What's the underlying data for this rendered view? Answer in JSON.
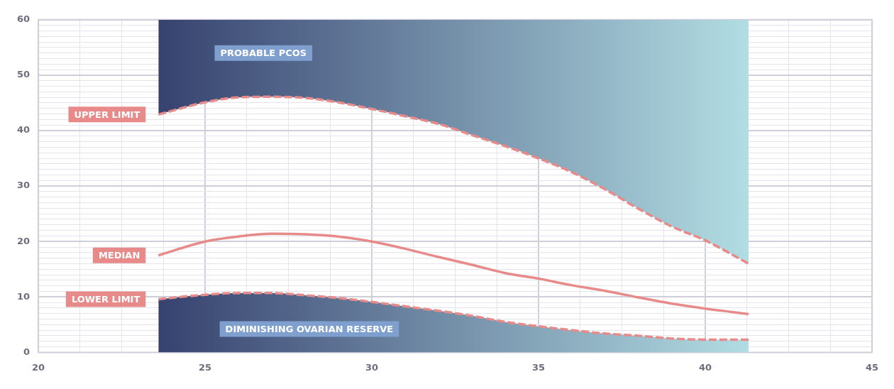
{
  "chart_data": {
    "type": "line",
    "x": [
      23.6,
      25,
      26,
      27,
      28,
      29,
      30,
      31,
      32,
      33,
      34,
      35,
      36,
      37,
      38,
      39,
      40,
      41.3
    ],
    "series": [
      {
        "name": "UPPER LIMIT",
        "color": "#e88a8a",
        "line_style": "dashed",
        "values": [
          42.9,
          45.1,
          46.0,
          46.1,
          45.9,
          45.1,
          43.9,
          42.6,
          41.2,
          39.2,
          37.2,
          35.0,
          32.5,
          29.4,
          25.9,
          22.7,
          20.2,
          16.0
        ],
        "lower": [
          42.9,
          45.1,
          46.0,
          46.1,
          45.9,
          45.1,
          43.9,
          42.6,
          41.2,
          39.2,
          37.2,
          35.0,
          32.5,
          29.4,
          25.9,
          22.7,
          20.2,
          16.0
        ],
        "upper": [
          60,
          60,
          60,
          60,
          60,
          60,
          60,
          60,
          60,
          60,
          60,
          60,
          60,
          60,
          60,
          60,
          60,
          60
        ]
      },
      {
        "name": "MEDIAN",
        "color": "#e88a8a",
        "line_style": "solid",
        "values": [
          17.5,
          20.0,
          20.9,
          21.4,
          21.3,
          20.9,
          20.0,
          18.7,
          17.2,
          15.8,
          14.3,
          13.3,
          12.1,
          11.1,
          9.9,
          8.8,
          7.9,
          6.9
        ]
      },
      {
        "name": "LOWER LIMIT",
        "type": "area",
        "color": "#e88a8a",
        "line_style": "dashed",
        "values": [
          9.6,
          10.4,
          10.7,
          10.7,
          10.3,
          9.8,
          9.1,
          8.3,
          7.5,
          6.6,
          5.5,
          4.7,
          4.0,
          3.4,
          3.0,
          2.5,
          2.3,
          2.3
        ]
      }
    ],
    "annotations": [
      "PROBABLE PCOS",
      "DIMINISHING OVARIAN RESERVE"
    ],
    "xlim": [
      20,
      45
    ],
    "xticks": [
      20,
      {
        "value": 21.25,
        "label": null
      },
      {
        "value": 22.5,
        "label": null
      },
      {
        "value": 23.75,
        "label": null
      },
      25,
      {
        "value": 26.25,
        "label": null
      },
      {
        "value": 27.5,
        "label": null
      },
      {
        "value": 28.75,
        "label": null
      },
      30,
      {
        "value": 31.25,
        "label": null
      },
      {
        "value": 32.5,
        "label": null
      },
      {
        "value": 33.75,
        "label": null
      },
      35,
      {
        "value": 36.25,
        "label": null
      },
      {
        "value": 37.5,
        "label": null
      },
      {
        "value": 38.75,
        "label": null
      },
      40,
      {
        "value": 41.25,
        "label": null
      },
      {
        "value": 42.5,
        "label": null
      },
      {
        "value": 43.75,
        "label": null
      },
      45
    ],
    "ylim": [
      0,
      60
    ],
    "yticks": [
      0,
      {
        "value": 1,
        "label": null
      },
      {
        "value": 2,
        "label": null
      },
      {
        "value": 3,
        "label": null
      },
      {
        "value": 4,
        "label": null
      },
      {
        "value": 5,
        "label": null
      },
      {
        "value": 6,
        "label": null
      },
      {
        "value": 7,
        "label": null
      },
      {
        "value": 8,
        "label": null
      },
      {
        "value": 9,
        "label": null
      },
      10,
      {
        "value": 11,
        "label": null
      },
      {
        "value": 12,
        "label": null
      },
      {
        "value": 13,
        "label": null
      },
      {
        "value": 14,
        "label": null
      },
      {
        "value": 15,
        "label": null
      },
      {
        "value": 16,
        "label": null
      },
      {
        "value": 17,
        "label": null
      },
      {
        "value": 18,
        "label": null
      },
      {
        "value": 19,
        "label": null
      },
      20,
      {
        "value": 21,
        "label": null
      },
      {
        "value": 22,
        "label": null
      },
      {
        "value": 23,
        "label": null
      },
      {
        "value": 24,
        "label": null
      },
      {
        "value": 25,
        "label": null
      },
      {
        "value": 26,
        "label": null
      },
      {
        "value": 27,
        "label": null
      },
      {
        "value": 28,
        "label": null
      },
      {
        "value": 29,
        "label": null
      },
      30,
      {
        "value": 31,
        "label": null
      },
      {
        "value": 32,
        "label": null
      },
      {
        "value": 33,
        "label": null
      },
      {
        "value": 34,
        "label": null
      },
      {
        "value": 35,
        "label": null
      },
      {
        "value": 36,
        "label": null
      },
      {
        "value": 37,
        "label": null
      },
      {
        "value": 38,
        "label": null
      },
      {
        "value": 39,
        "label": null
      },
      40,
      {
        "value": 41,
        "label": null
      },
      {
        "value": 42,
        "label": null
      },
      {
        "value": 43,
        "label": null
      },
      {
        "value": 44,
        "label": null
      },
      {
        "value": 45,
        "label": null
      },
      {
        "value": 46,
        "label": null
      },
      {
        "value": 47,
        "label": null
      },
      {
        "value": 48,
        "label": null
      },
      {
        "value": 49,
        "label": null
      },
      50,
      {
        "value": 51,
        "label": null
      },
      {
        "value": 52,
        "label": null
      },
      {
        "value": 53,
        "label": null
      },
      {
        "value": 54,
        "label": null
      },
      {
        "value": 55,
        "label": null
      },
      {
        "value": 56,
        "label": null
      },
      {
        "value": 57,
        "label": null
      },
      {
        "value": 58,
        "label": null
      },
      {
        "value": 59,
        "label": null
      },
      60
    ],
    "grid": true,
    "legend": false,
    "marker": "none"
  }
}
